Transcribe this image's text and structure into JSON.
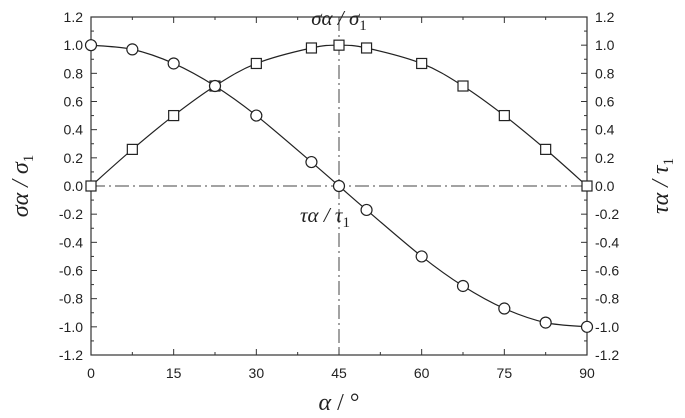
{
  "chart_data": {
    "type": "line",
    "title": "",
    "xlabel": {
      "main": "α",
      "unit": "°"
    },
    "ylabel_left": {
      "main": "σα",
      "sub": "1",
      "denom": "σ"
    },
    "ylabel_right": {
      "main": "τα",
      "sub": "1",
      "denom": "τ"
    },
    "xlim": [
      0,
      90
    ],
    "ylim": [
      -1.2,
      1.2
    ],
    "x_ticks": [
      "0",
      "15",
      "30",
      "45",
      "60",
      "75",
      "90"
    ],
    "x_tick_values": [
      0,
      15,
      30,
      45,
      60,
      75,
      90
    ],
    "y_ticks_left": [
      "1.2",
      "1.0",
      "0.8",
      "0.6",
      "0.4",
      "0.2",
      "0.0",
      "-0.2",
      "-0.4",
      "-0.6",
      "-0.8",
      "-1.0",
      "-1.2"
    ],
    "y_ticks_right": [
      "1.2",
      "1.0",
      "0.8",
      "0.6",
      "0.4",
      "0.2",
      "0.0",
      "-0.2",
      "-0.4",
      "-0.6",
      "-0.8",
      "-1.0",
      "-1.2"
    ],
    "y_tick_values": [
      1.2,
      1.0,
      0.8,
      0.6,
      0.4,
      0.2,
      0.0,
      -0.2,
      -0.4,
      -0.6,
      -0.8,
      -1.0,
      -1.2
    ],
    "reference_lines": {
      "x": 45,
      "y": 0,
      "style": "dash-dot"
    },
    "annotations": [
      {
        "name": "sigma-annotation",
        "main": "σα",
        "sub": "1",
        "denom": "σ",
        "x": 45,
        "y": 1.12
      },
      {
        "name": "tau-annotation",
        "main": "τα",
        "sub": "1",
        "denom": "τ",
        "x": 45,
        "y": -0.2
      }
    ],
    "series": [
      {
        "id": "sigma",
        "marker": "square",
        "x": [
          0,
          7.5,
          15,
          22.5,
          30,
          40,
          45,
          50,
          60,
          67.5,
          75,
          82.5,
          90
        ],
        "y": [
          0.0,
          0.26,
          0.5,
          0.71,
          0.87,
          0.98,
          1.0,
          0.98,
          0.87,
          0.71,
          0.5,
          0.26,
          0.0
        ]
      },
      {
        "id": "tau",
        "marker": "circle",
        "x": [
          0,
          7.5,
          15,
          22.5,
          30,
          40,
          45,
          50,
          60,
          67.5,
          75,
          82.5,
          90
        ],
        "y": [
          1.0,
          0.97,
          0.87,
          0.71,
          0.5,
          0.17,
          0.0,
          -0.17,
          -0.5,
          -0.71,
          -0.87,
          -0.97,
          -1.0
        ]
      }
    ]
  }
}
